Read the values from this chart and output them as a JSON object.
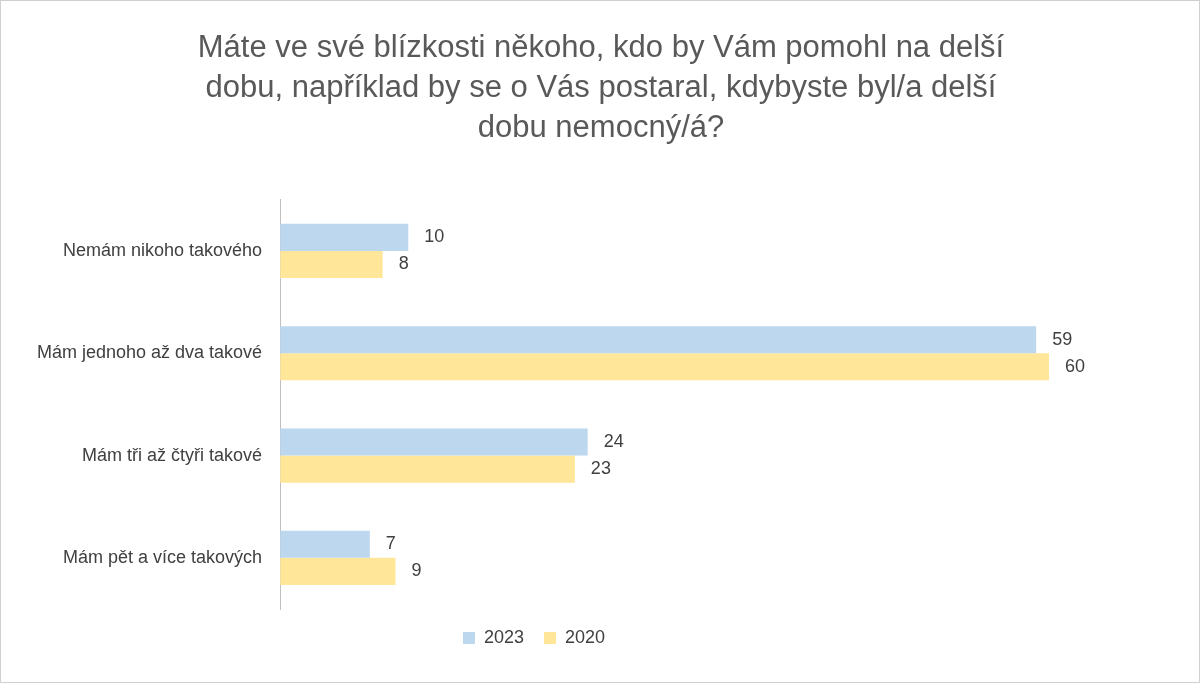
{
  "chart_data": {
    "type": "bar",
    "orientation": "horizontal",
    "title": "Máte ve své blízkosti někoho, kdo by Vám pomohl na delší dobu, například by se o Vás postaral, kdybyste byl/a delší dobu nemocný/á?",
    "categories": [
      "Nemám nikoho takového",
      "Mám jednoho až dva takové",
      "Mám tři až čtyři takové",
      "Mám pět a více takových"
    ],
    "series": [
      {
        "name": "2023",
        "color": "#bdd7ee",
        "values": [
          10,
          59,
          24,
          7
        ]
      },
      {
        "name": "2020",
        "color": "#ffe699",
        "values": [
          8,
          60,
          23,
          9
        ]
      }
    ],
    "tick_labels": "y",
    "data_labels": true,
    "legend": "bottom"
  }
}
